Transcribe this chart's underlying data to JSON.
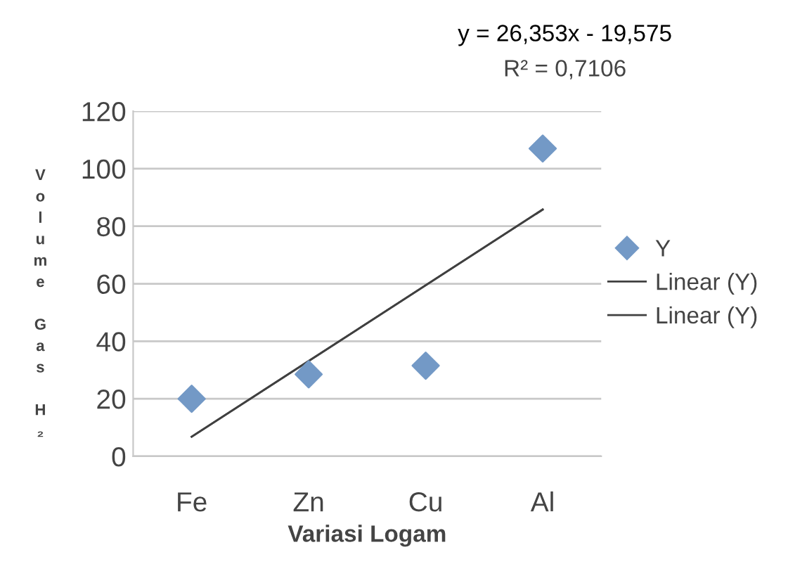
{
  "chart_data": {
    "type": "scatter",
    "xlabel": "Variasi Logam",
    "ylabel": "Volume Gas H₂",
    "categories": [
      "Fe",
      "Zn",
      "Cu",
      "Al"
    ],
    "series": [
      {
        "name": "Y",
        "color": "#7399c6",
        "marker": "diamond",
        "values": [
          20,
          28.5,
          31.5,
          107
        ]
      },
      {
        "name": "Linear (Y)",
        "type": "line",
        "color": "#404040",
        "line_style": "solid",
        "x": [
          "Fe",
          "Al"
        ],
        "values": [
          6.8,
          85.8
        ]
      },
      {
        "name": "Linear (Y)",
        "type": "line",
        "color": "#404040",
        "line_style": "solid",
        "x": [
          "Fe",
          "Al"
        ],
        "values": [
          6.8,
          85.8
        ]
      }
    ],
    "ylim": [
      0,
      120
    ],
    "yticks": [
      0,
      20,
      40,
      60,
      80,
      100,
      120
    ],
    "grid": "y",
    "legend": "right",
    "annotations": [
      "y = 26,353x - 19,575",
      "R² = 0,7106"
    ]
  }
}
